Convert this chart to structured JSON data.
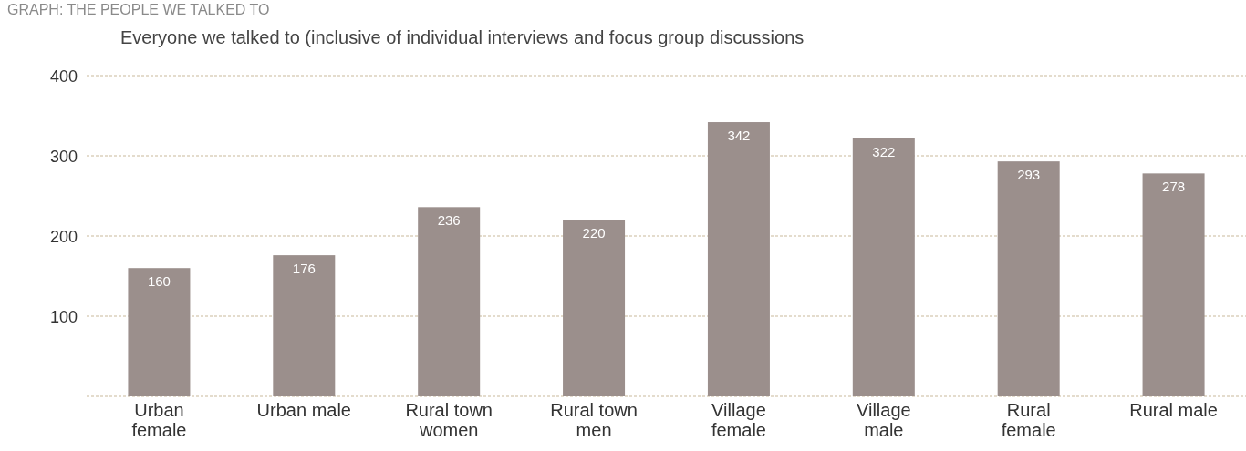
{
  "chart_data": {
    "type": "bar",
    "title": "GRAPH: THE PEOPLE WE TALKED TO",
    "subtitle": "Everyone we talked to (inclusive of individual interviews and focus group discussions",
    "categories": [
      "Urban female",
      "Urban male",
      "Rural town women",
      "Rural town men",
      "Village female",
      "Village male",
      "Rural female",
      "Rural male"
    ],
    "values": [
      160,
      176,
      236,
      220,
      342,
      322,
      293,
      278
    ],
    "color": "#9b8f8c",
    "data_labels": true,
    "ylim": [
      0,
      400
    ],
    "yticks": [
      {
        "value": 0,
        "label": null
      },
      100,
      200,
      300,
      400
    ],
    "grid": "y"
  }
}
